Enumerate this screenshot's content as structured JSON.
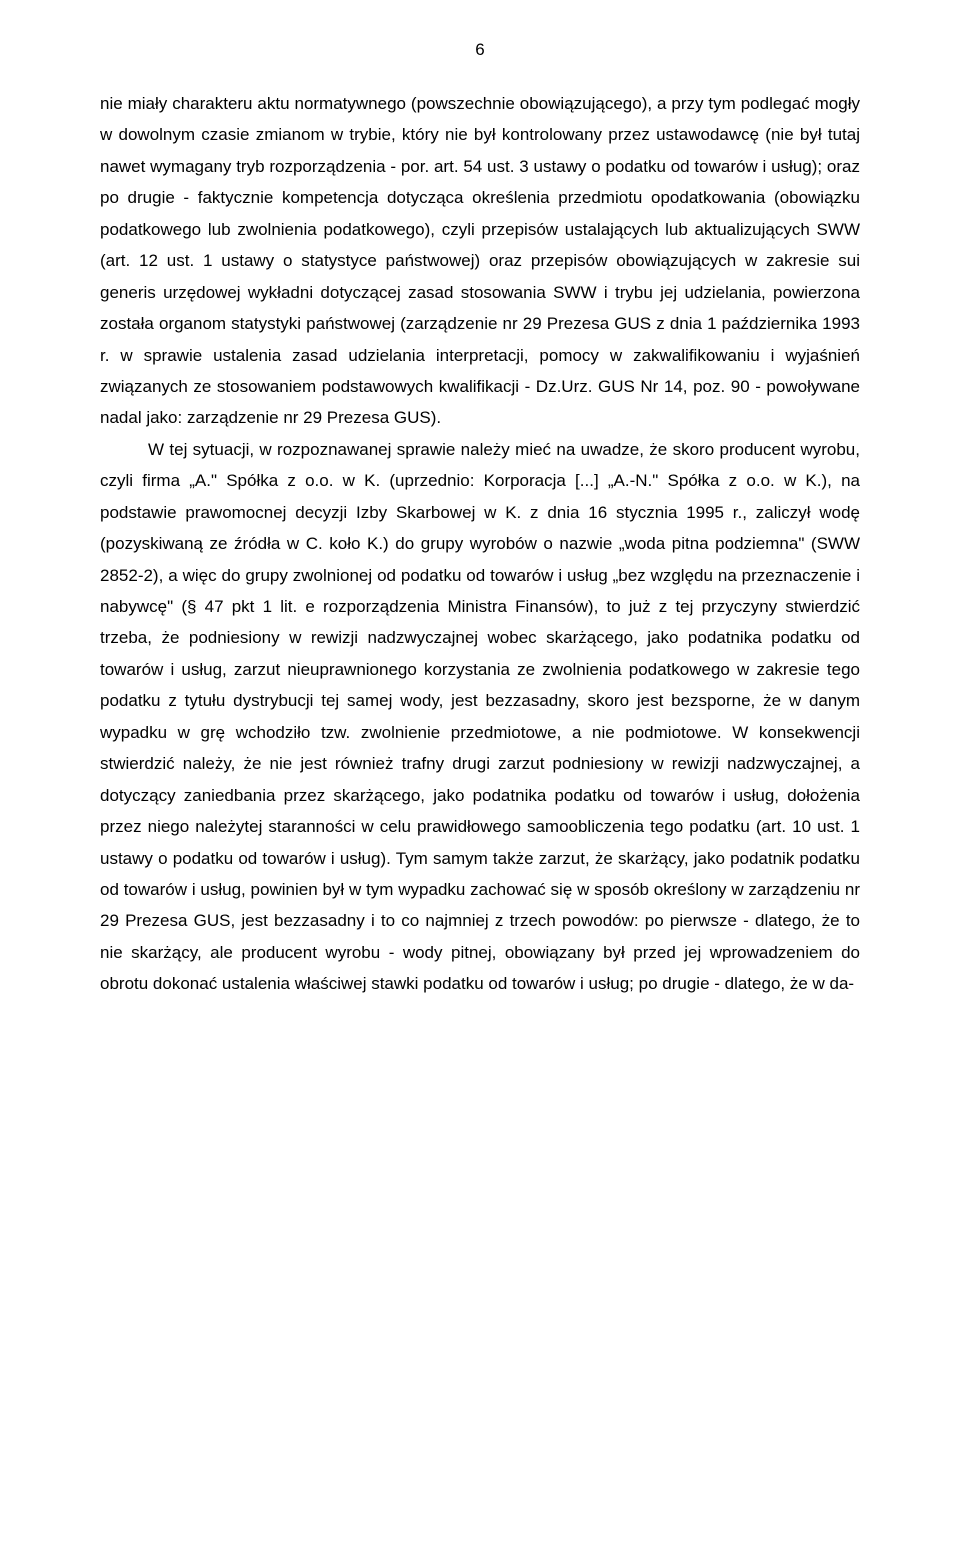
{
  "page": {
    "number": "6",
    "paragraph1": "nie miały charakteru aktu normatywnego (powszechnie obowiązującego), a przy tym podlegać mogły w dowolnym czasie zmianom w trybie, który nie był kontrolowany przez ustawodawcę (nie był tutaj nawet wymagany tryb rozporządzenia - por. art. 54 ust. 3 ustawy o podatku od towarów i usług); oraz po drugie - faktycznie kompetencja dotycząca określenia przedmiotu opodatkowania (obowiązku podatkowego lub zwolnienia podatkowego), czyli przepisów ustalających lub aktualizujących SWW (art. 12 ust. 1 ustawy o statystyce państwowej) oraz przepisów obowiązujących w zakresie sui generis urzędowej wykładni dotyczącej zasad stosowania SWW i trybu jej udzielania, powierzona została organom statystyki państwowej (zarządzenie nr 29 Prezesa GUS z dnia 1 października 1993 r. w sprawie ustalenia zasad udzielania interpretacji, pomocy w zakwalifikowaniu i wyjaśnień związanych ze stosowaniem podstawowych kwalifikacji - Dz.Urz. GUS Nr 14, poz. 90 - powoływane nadal jako: zarządzenie nr 29 Prezesa GUS).",
    "paragraph2": "W tej sytuacji, w rozpoznawanej sprawie należy mieć na uwadze, że skoro producent wyrobu, czyli firma „A.\" Spółka z o.o. w K. (uprzednio: Korporacja [...] „A.-N.\" Spółka z o.o. w K.), na podstawie prawomocnej decyzji Izby Skarbowej w K. z dnia 16 stycznia 1995 r., zaliczył wodę (pozyskiwaną ze źródła w C. koło K.) do grupy wyrobów o nazwie „woda pitna podziemna\" (SWW 2852-2), a więc do grupy zwolnionej od podatku od towarów i usług „bez względu na przeznaczenie i nabywcę\" (§ 47 pkt 1 lit. e rozporządzenia Ministra Finansów), to już z tej przyczyny stwierdzić trzeba, że podniesiony w rewizji nadzwyczajnej wobec skarżącego, jako podatnika podatku od towarów i usług, zarzut nieuprawnionego korzystania ze zwolnienia podatkowego w zakresie tego podatku z tytułu dystrybucji tej samej wody, jest bezzasadny, skoro jest bezsporne, że w danym wypadku w grę wchodziło tzw. zwolnienie przedmiotowe, a nie podmiotowe. W konsekwencji stwierdzić należy, że nie jest również trafny drugi zarzut podniesiony w rewizji nadzwyczajnej, a dotyczący zaniedbania przez skarżącego, jako podatnika podatku od towarów i usług, dołożenia przez niego należytej staranności w celu prawidłowego samoobliczenia tego podatku (art. 10 ust. 1 ustawy o podatku od towarów i usług). Tym samym także zarzut, że skarżący, jako podatnik podatku od towarów i usług, powinien był w tym wypadku zachować się w sposób określony w zarządzeniu nr 29 Prezesa GUS, jest bezzasadny i to co najmniej z trzech powodów: po pierwsze - dlatego, że to nie skarżący, ale producent wyrobu - wody pitnej, obowiązany był przed jej wprowadzeniem do obrotu dokonać ustalenia właściwej stawki podatku od towarów i usług; po drugie - dlatego, że w da-"
  }
}
